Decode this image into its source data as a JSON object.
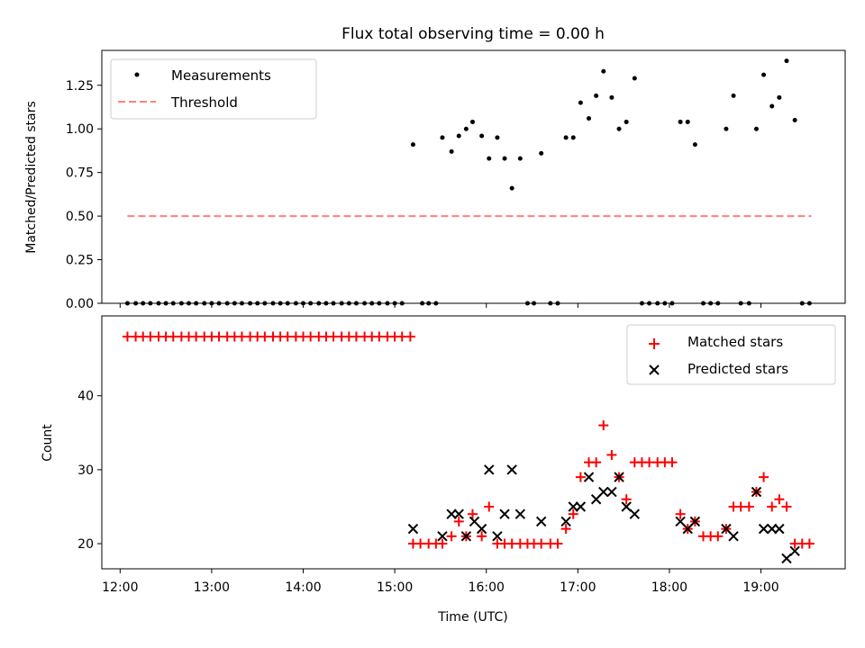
{
  "chart_data": [
    {
      "type": "scatter",
      "title": "Flux total observing time = 0.00 h",
      "ylabel": "Matched/Predicted stars",
      "xlabel": "",
      "xlim": [
        11.8,
        19.92
      ],
      "ylim": [
        0,
        1.45
      ],
      "x_ticks": [
        12,
        13,
        14,
        15,
        16,
        17,
        18,
        19
      ],
      "x_ticklabels_visible": false,
      "y_ticks": [
        0,
        0.25,
        0.5,
        0.75,
        1.0,
        1.25
      ],
      "y_ticklabels": [
        "0.00",
        "0.25",
        "0.50",
        "0.75",
        "1.00",
        "1.25"
      ],
      "legend_position": "top-left",
      "series": [
        {
          "name": "Measurements",
          "marker": "dot",
          "color": "#000000",
          "x": [
            12.08,
            12.17,
            12.25,
            12.33,
            12.42,
            12.5,
            12.58,
            12.67,
            12.75,
            12.83,
            12.92,
            13.0,
            13.08,
            13.17,
            13.25,
            13.33,
            13.42,
            13.5,
            13.58,
            13.67,
            13.75,
            13.83,
            13.92,
            14.0,
            14.08,
            14.17,
            14.25,
            14.33,
            14.42,
            14.5,
            14.58,
            14.67,
            14.75,
            14.83,
            14.92,
            15.0,
            15.08,
            15.2,
            15.3,
            15.37,
            15.45,
            15.52,
            15.62,
            15.7,
            15.78,
            15.85,
            15.95,
            16.03,
            16.12,
            16.2,
            16.28,
            16.37,
            16.45,
            16.52,
            16.6,
            16.7,
            16.78,
            16.87,
            16.95,
            17.03,
            17.12,
            17.2,
            17.28,
            17.37,
            17.45,
            17.53,
            17.62,
            17.7,
            17.78,
            17.87,
            17.95,
            18.03,
            18.12,
            18.2,
            18.28,
            18.37,
            18.45,
            18.53,
            18.62,
            18.7,
            18.78,
            18.87,
            18.95,
            19.03,
            19.12,
            19.2,
            19.28,
            19.37,
            19.45,
            19.53
          ],
          "y": [
            0,
            0,
            0,
            0,
            0,
            0,
            0,
            0,
            0,
            0,
            0,
            0,
            0,
            0,
            0,
            0,
            0,
            0,
            0,
            0,
            0,
            0,
            0,
            0,
            0,
            0,
            0,
            0,
            0,
            0,
            0,
            0,
            0,
            0,
            0,
            0,
            0,
            0.91,
            0,
            0,
            0,
            0.95,
            0.87,
            0.96,
            1.0,
            1.04,
            0.96,
            0.83,
            0.95,
            0.83,
            0.66,
            0.83,
            0,
            0,
            0.86,
            0,
            0,
            0.95,
            0.95,
            1.15,
            1.06,
            1.19,
            1.33,
            1.18,
            1.0,
            1.04,
            1.29,
            0,
            0,
            0,
            0,
            0,
            1.04,
            1.04,
            0.91,
            0,
            0,
            0,
            1.0,
            1.19,
            0,
            0,
            1.0,
            1.31,
            1.13,
            1.18,
            1.39,
            1.05,
            0,
            0
          ]
        },
        {
          "name": "Threshold",
          "marker": "dashed-line",
          "color": "#ff7f7f",
          "x": [
            12.08,
            19.55
          ],
          "y": [
            0.5,
            0.5
          ]
        }
      ]
    },
    {
      "type": "scatter",
      "title": "",
      "ylabel": "Count",
      "xlabel": "Time (UTC)",
      "xlim": [
        11.8,
        19.92
      ],
      "ylim": [
        16.6,
        50.8
      ],
      "x_ticks": [
        12,
        13,
        14,
        15,
        16,
        17,
        18,
        19
      ],
      "x_ticklabels": [
        "12:00",
        "13:00",
        "14:00",
        "15:00",
        "16:00",
        "17:00",
        "18:00",
        "19:00"
      ],
      "y_ticks": [
        20,
        30,
        40
      ],
      "y_ticklabels": [
        "20",
        "30",
        "40"
      ],
      "legend_position": "top-right",
      "series": [
        {
          "name": "Matched stars",
          "marker": "plus",
          "color": "#ff0000",
          "x": [
            12.08,
            12.17,
            12.25,
            12.33,
            12.42,
            12.5,
            12.58,
            12.67,
            12.75,
            12.83,
            12.92,
            13.0,
            13.08,
            13.17,
            13.25,
            13.33,
            13.42,
            13.5,
            13.58,
            13.67,
            13.75,
            13.83,
            13.92,
            14.0,
            14.08,
            14.17,
            14.25,
            14.33,
            14.42,
            14.5,
            14.58,
            14.67,
            14.75,
            14.83,
            14.92,
            15.0,
            15.08,
            15.17,
            15.2,
            15.28,
            15.37,
            15.45,
            15.52,
            15.62,
            15.7,
            15.78,
            15.85,
            15.95,
            16.03,
            16.12,
            16.2,
            16.28,
            16.37,
            16.45,
            16.52,
            16.6,
            16.7,
            16.78,
            16.87,
            16.95,
            17.03,
            17.12,
            17.2,
            17.28,
            17.37,
            17.45,
            17.53,
            17.62,
            17.7,
            17.78,
            17.87,
            17.95,
            18.03,
            18.12,
            18.2,
            18.28,
            18.37,
            18.45,
            18.53,
            18.62,
            18.7,
            18.78,
            18.87,
            18.95,
            19.03,
            19.12,
            19.2,
            19.28,
            19.37,
            19.45,
            19.53
          ],
          "y": [
            48,
            48,
            48,
            48,
            48,
            48,
            48,
            48,
            48,
            48,
            48,
            48,
            48,
            48,
            48,
            48,
            48,
            48,
            48,
            48,
            48,
            48,
            48,
            48,
            48,
            48,
            48,
            48,
            48,
            48,
            48,
            48,
            48,
            48,
            48,
            48,
            48,
            48,
            20,
            20,
            20,
            20,
            20,
            21,
            23,
            21,
            24,
            21,
            25,
            20,
            20,
            20,
            20,
            20,
            20,
            20,
            20,
            20,
            22,
            24,
            29,
            31,
            31,
            36,
            32,
            29,
            26,
            31,
            31,
            31,
            31,
            31,
            31,
            24,
            22,
            23,
            21,
            21,
            21,
            22,
            25,
            25,
            25,
            27,
            29,
            25,
            26,
            25,
            20,
            20,
            20
          ],
          "plot_x": [
            12.08,
            12.17,
            12.25,
            12.33,
            12.42,
            12.5,
            12.58,
            12.67,
            12.75,
            12.83,
            12.92,
            13.0,
            13.08,
            13.17,
            13.25,
            13.33,
            13.42,
            13.5,
            13.58,
            13.67,
            13.75,
            13.83,
            13.92,
            14.0,
            14.08,
            14.17,
            14.25,
            14.33,
            14.42,
            14.5,
            14.58,
            14.67,
            14.75,
            14.83,
            14.92,
            15.0,
            15.08,
            15.17,
            15.2,
            15.28,
            15.37,
            15.45,
            15.52,
            15.62,
            15.7,
            15.78,
            15.85,
            15.95,
            16.03,
            16.12,
            16.2,
            16.28,
            16.37,
            16.45,
            16.52,
            16.6,
            16.7,
            16.78,
            16.87,
            16.95,
            17.03,
            17.12,
            17.2,
            17.28,
            17.37,
            17.45,
            17.53,
            17.62,
            17.7,
            17.78,
            17.87,
            17.95,
            18.03,
            18.12,
            18.2,
            18.28,
            18.37,
            18.45,
            18.53,
            18.62,
            18.7,
            18.78,
            18.87,
            18.95,
            19.03,
            19.12,
            19.2,
            19.28,
            19.37,
            19.45,
            19.53
          ]
        },
        {
          "name": "Predicted stars",
          "marker": "x",
          "color": "#000000",
          "x": [
            15.2,
            15.52,
            15.62,
            15.7,
            15.78,
            15.87,
            15.95,
            16.03,
            16.12,
            16.2,
            16.28,
            16.37,
            16.6,
            16.87,
            16.95,
            17.03,
            17.12,
            17.2,
            17.28,
            17.37,
            17.45,
            17.53,
            17.62,
            18.12,
            18.2,
            18.28,
            18.62,
            18.7,
            18.95,
            19.03,
            19.12,
            19.2,
            19.28,
            19.37
          ],
          "y": [
            22,
            21,
            24,
            24,
            21,
            23,
            22,
            30,
            21,
            24,
            30,
            24,
            23,
            23,
            25,
            25,
            29,
            26,
            27,
            27,
            29,
            25,
            24,
            23,
            22,
            23,
            22,
            21,
            27,
            22,
            22,
            22,
            18,
            19
          ]
        }
      ]
    }
  ]
}
